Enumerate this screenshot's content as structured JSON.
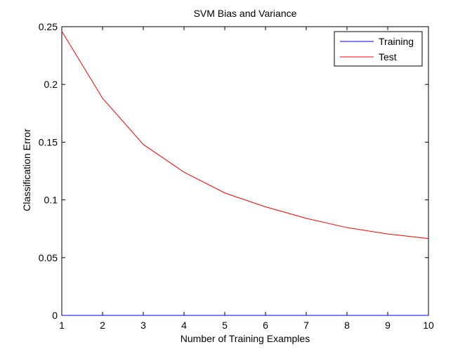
{
  "chart_data": {
    "type": "line",
    "title": "SVM Bias and Variance",
    "xlabel": "Number of Training Examples",
    "ylabel": "Classification Error",
    "xlim": [
      1,
      10
    ],
    "ylim": [
      0,
      0.25
    ],
    "xticks": [
      1,
      2,
      3,
      4,
      5,
      6,
      7,
      8,
      9,
      10
    ],
    "yticks": [
      0,
      0.05,
      0.1,
      0.15,
      0.2,
      0.25
    ],
    "ytick_labels": [
      "0",
      "0.05",
      "0.1",
      "0.15",
      "0.2",
      "0.25"
    ],
    "grid": false,
    "legend_position": "top-right",
    "series": [
      {
        "name": "Training",
        "color": "#0000ff",
        "x": [
          1,
          2,
          3,
          4,
          5,
          6,
          7,
          8,
          9,
          10
        ],
        "values": [
          0,
          0,
          0,
          0,
          0,
          0,
          0,
          0,
          0,
          0
        ]
      },
      {
        "name": "Test",
        "color": "#ff0000",
        "x": [
          1,
          2,
          3,
          4,
          5,
          6,
          7,
          8,
          9,
          10
        ],
        "values": [
          0.246,
          0.188,
          0.148,
          0.124,
          0.106,
          0.094,
          0.084,
          0.076,
          0.0705,
          0.0665
        ]
      }
    ]
  }
}
